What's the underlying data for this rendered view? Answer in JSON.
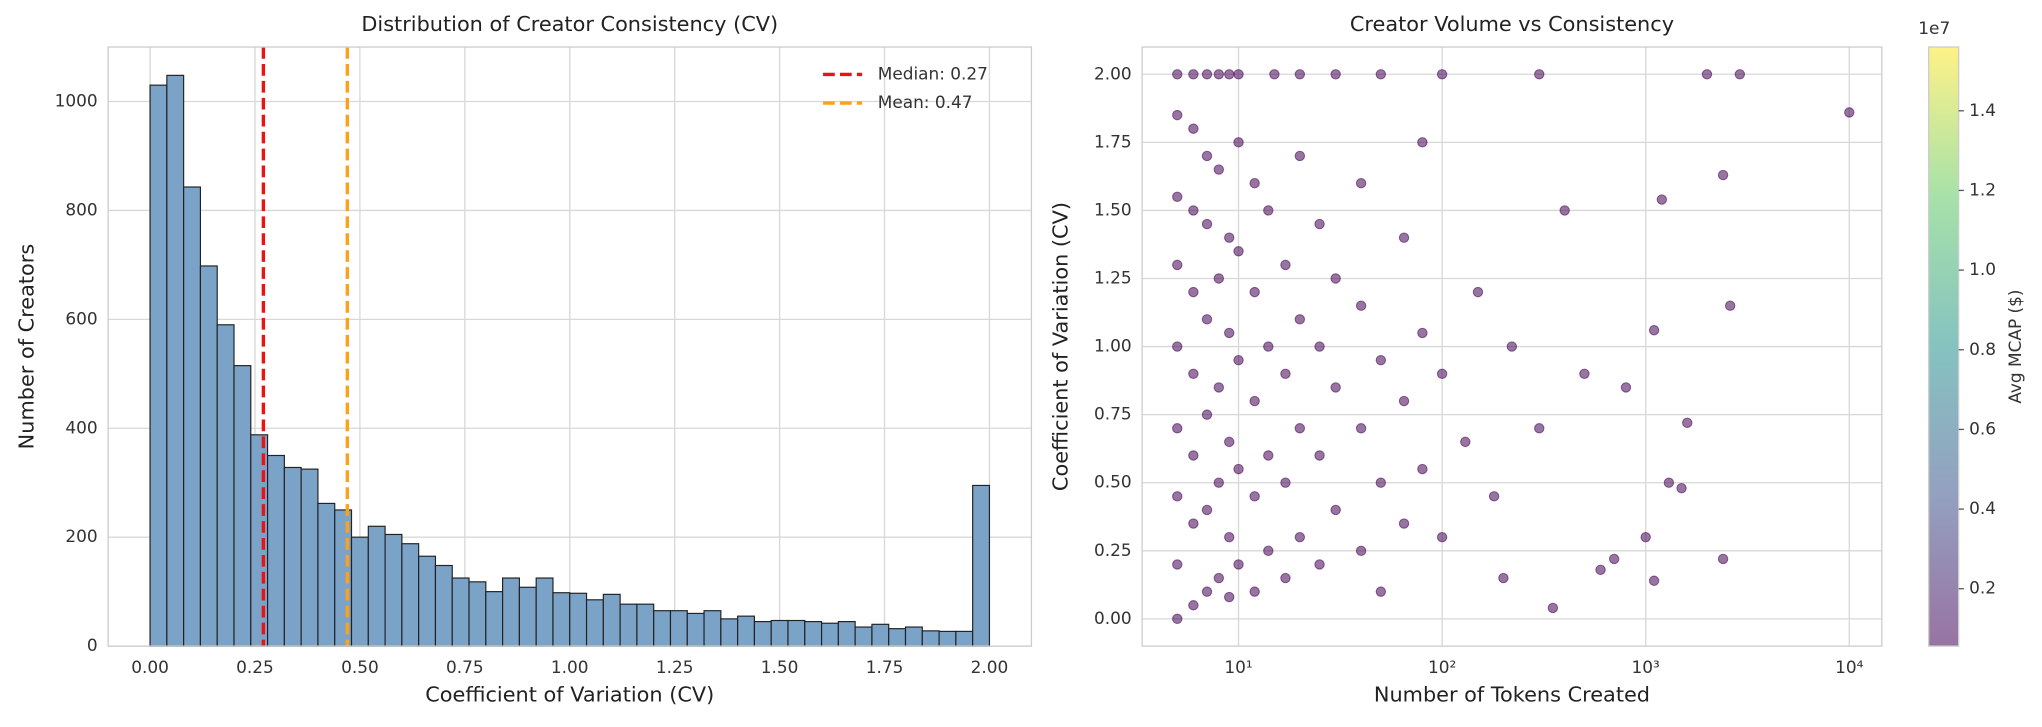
{
  "chart_data": [
    {
      "type": "histogram",
      "title": "Distribution of Creator Consistency (CV)",
      "xlabel": "Coefficient of Variation (CV)",
      "ylabel": "Number of Creators",
      "bins": [
        0,
        0.04,
        0.08,
        0.12,
        0.16,
        0.2,
        0.24,
        0.28,
        0.32,
        0.36,
        0.4,
        0.44,
        0.48,
        0.52,
        0.56,
        0.6,
        0.64,
        0.68,
        0.72,
        0.76,
        0.8,
        0.84,
        0.88,
        0.92,
        0.96,
        1,
        1.04,
        1.08,
        1.12,
        1.16,
        1.2,
        1.24,
        1.28,
        1.32,
        1.36,
        1.4,
        1.44,
        1.48,
        1.52,
        1.56,
        1.6,
        1.64,
        1.68,
        1.72,
        1.76,
        1.8,
        1.84,
        1.88,
        1.92,
        1.96,
        2
      ],
      "counts": [
        1030,
        1048,
        843,
        698,
        590,
        515,
        388,
        350,
        328,
        325,
        262,
        250,
        200,
        220,
        205,
        188,
        165,
        148,
        125,
        118,
        100,
        125,
        108,
        125,
        98,
        97,
        85,
        95,
        77,
        77,
        65,
        65,
        60,
        65,
        50,
        55,
        45,
        47,
        47,
        45,
        42,
        45,
        35,
        40,
        32,
        35,
        28,
        27,
        27,
        295
      ],
      "color": "#7ba3c8",
      "edgecolor": "#222222",
      "vlines": [
        {
          "name": "Median: 0.27",
          "x": 0.27,
          "color": "#ee1111"
        },
        {
          "name": "Mean: 0.47",
          "x": 0.47,
          "color": "#ffa01a"
        }
      ],
      "legend": "upper right",
      "grid": true,
      "xlim": [
        -0.1,
        2.1
      ],
      "xticks": [
        {
          "value": 0,
          "label": "0.00"
        },
        {
          "value": 0.25,
          "label": "0.25"
        },
        {
          "value": 0.5,
          "label": "0.50"
        },
        {
          "value": 0.75,
          "label": "0.75"
        },
        {
          "value": 1,
          "label": "1.00"
        },
        {
          "value": 1.25,
          "label": "1.25"
        },
        {
          "value": 1.5,
          "label": "1.50"
        },
        {
          "value": 1.75,
          "label": "1.75"
        },
        {
          "value": 2,
          "label": "2.00"
        }
      ],
      "ylim": [
        0,
        1100
      ],
      "yticks": [
        0,
        200,
        400,
        600,
        800,
        1000
      ]
    },
    {
      "type": "scatter",
      "title": "Creator Volume vs Consistency",
      "xlabel": "Number of Tokens Created",
      "ylabel": "Coefficient of Variation (CV)",
      "x": [
        5,
        5,
        5,
        5,
        5,
        5,
        5,
        5,
        5,
        6,
        6,
        6,
        6,
        6,
        6,
        6,
        6,
        7,
        7,
        7,
        7,
        7,
        7,
        7,
        8,
        8,
        8,
        8,
        8,
        8,
        9,
        9,
        9,
        9,
        9,
        9,
        10,
        10,
        10,
        10,
        10,
        10,
        12,
        12,
        12,
        12,
        12,
        14,
        14,
        14,
        14,
        15,
        17,
        17,
        17,
        17,
        20,
        20,
        20,
        20,
        20,
        25,
        25,
        25,
        25,
        30,
        30,
        30,
        30,
        40,
        40,
        40,
        40,
        50,
        50,
        50,
        50,
        65,
        65,
        65,
        80,
        80,
        80,
        100,
        100,
        100,
        130,
        150,
        180,
        200,
        220,
        300,
        300,
        350,
        400,
        500,
        600,
        700,
        800,
        1000,
        1100,
        1100,
        1200,
        1300,
        1500,
        1600,
        2000,
        2400,
        2400,
        2600,
        2900,
        10000
      ],
      "y": [
        0,
        0.2,
        0.45,
        0.7,
        1.0,
        1.3,
        1.55,
        1.85,
        2.0,
        0.05,
        0.35,
        0.6,
        0.9,
        1.2,
        1.5,
        1.8,
        2.0,
        0.1,
        0.4,
        0.75,
        1.1,
        1.45,
        1.7,
        2.0,
        0.15,
        0.5,
        0.85,
        1.25,
        1.65,
        2.0,
        0.08,
        0.3,
        0.65,
        1.05,
        1.4,
        2.0,
        0.2,
        0.55,
        0.95,
        1.35,
        1.75,
        2.0,
        0.1,
        0.45,
        0.8,
        1.2,
        1.6,
        0.25,
        0.6,
        1.0,
        1.5,
        2.0,
        0.15,
        0.5,
        0.9,
        1.3,
        0.3,
        0.7,
        1.1,
        1.7,
        2.0,
        0.2,
        0.6,
        1.0,
        1.45,
        0.4,
        0.85,
        1.25,
        2.0,
        0.25,
        0.7,
        1.15,
        1.6,
        0.1,
        0.5,
        0.95,
        2.0,
        0.35,
        0.8,
        1.4,
        0.55,
        1.05,
        1.75,
        0.3,
        0.9,
        2.0,
        0.65,
        1.2,
        0.45,
        0.15,
        1.0,
        0.7,
        2.0,
        0.04,
        1.5,
        0.9,
        0.18,
        0.22,
        0.85,
        0.3,
        0.14,
        1.06,
        1.54,
        0.5,
        0.48,
        0.72,
        2.0,
        0.22,
        1.63,
        1.15,
        2.0,
        1.86
      ],
      "color": "#440154",
      "alpha": 0.55,
      "xscale": "log",
      "grid": true,
      "xlim": [
        3.36,
        14450
      ],
      "xticks": [
        {
          "value": 10,
          "label": "10¹"
        },
        {
          "value": 100,
          "label": "10²"
        },
        {
          "value": 1000,
          "label": "10³"
        },
        {
          "value": 10000,
          "label": "10⁴"
        }
      ],
      "ylim": [
        -0.1,
        2.1
      ],
      "yticks": [
        {
          "value": 0,
          "label": "0.00"
        },
        {
          "value": 0.25,
          "label": "0.25"
        },
        {
          "value": 0.5,
          "label": "0.50"
        },
        {
          "value": 0.75,
          "label": "0.75"
        },
        {
          "value": 1,
          "label": "1.00"
        },
        {
          "value": 1.25,
          "label": "1.25"
        },
        {
          "value": 1.5,
          "label": "1.50"
        },
        {
          "value": 1.75,
          "label": "1.75"
        },
        {
          "value": 2,
          "label": "2.00"
        }
      ],
      "colorbar": {
        "label": "Avg MCAP ($)",
        "offset": "1e7",
        "colormap": "viridis",
        "lim": [
          560000,
          15600000
        ],
        "ticks": [
          {
            "value": 2000000,
            "label": "0.2"
          },
          {
            "value": 4000000,
            "label": "0.4"
          },
          {
            "value": 6000000,
            "label": "0.6"
          },
          {
            "value": 8000000,
            "label": "0.8"
          },
          {
            "value": 10000000,
            "label": "1.0"
          },
          {
            "value": 12000000,
            "label": "1.2"
          },
          {
            "value": 14000000,
            "label": "1.4"
          }
        ]
      }
    }
  ]
}
